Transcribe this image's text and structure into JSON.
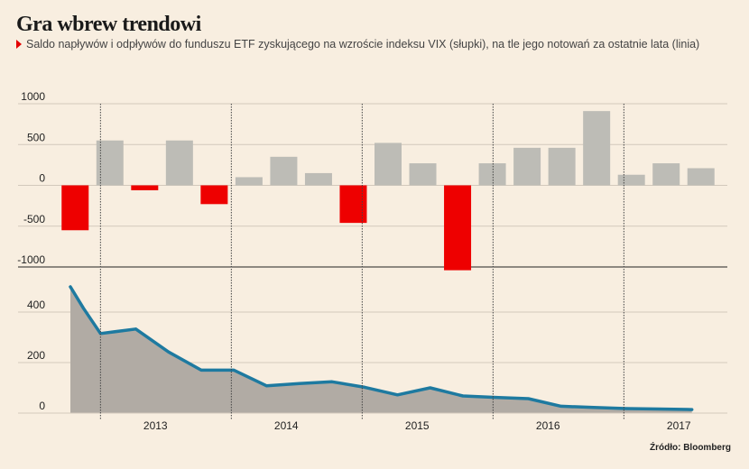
{
  "title": "Gra wbrew trendowi",
  "subtitle": "Saldo napływów i odpływów do funduszu ETF zyskującego na wzroście indeksu VIX (słupki), na tle jego notowań za ostatnie lata (linia)",
  "source": "Źródło: Bloomberg",
  "colors": {
    "background": "#f8eee0",
    "positive_bar": "#bdbcb6",
    "negative_bar": "#ee0000",
    "line": "#1e7aa0",
    "area": "#b1aba4",
    "subtitle_marker": "#e40000"
  },
  "chart_data": [
    {
      "type": "bar",
      "description_of_series": "monthly-ish net flows",
      "ylim": [
        -1000,
        1000
      ],
      "yticks": [
        "1000",
        "500",
        "0",
        "-500",
        "-1000"
      ],
      "ytick_values": [
        1000,
        500,
        0,
        -500,
        -1000
      ],
      "values": [
        -550,
        550,
        -60,
        550,
        -230,
        100,
        350,
        150,
        -460,
        520,
        270,
        -1040,
        270,
        460,
        460,
        910,
        130,
        270,
        210
      ],
      "grid": true
    },
    {
      "type": "area",
      "ylim": [
        0,
        500
      ],
      "yticks": [
        "400",
        "200",
        "0"
      ],
      "ytick_values": [
        400,
        200,
        0
      ],
      "x": [
        2012.35,
        2012.45,
        2012.58,
        2012.85,
        2013.1,
        2013.35,
        2013.6,
        2013.85,
        2014.1,
        2014.35,
        2014.6,
        2014.85,
        2015.1,
        2015.35,
        2015.6,
        2015.85,
        2016.1,
        2016.35,
        2016.6,
        2016.85,
        2017.1
      ],
      "y": [
        500,
        415,
        315,
        333,
        242,
        170,
        170,
        108,
        117,
        124,
        102,
        72,
        100,
        68,
        62,
        57,
        27,
        22,
        18,
        16,
        14
      ],
      "xticks": [
        "2013",
        "2014",
        "2015",
        "2016",
        "2017"
      ],
      "xtick_values": [
        2013.0,
        2014.0,
        2015.0,
        2016.0,
        2017.0
      ],
      "year_dividers": [
        2012.58,
        2013.58,
        2014.58,
        2015.58,
        2016.58
      ],
      "grid": true
    }
  ]
}
